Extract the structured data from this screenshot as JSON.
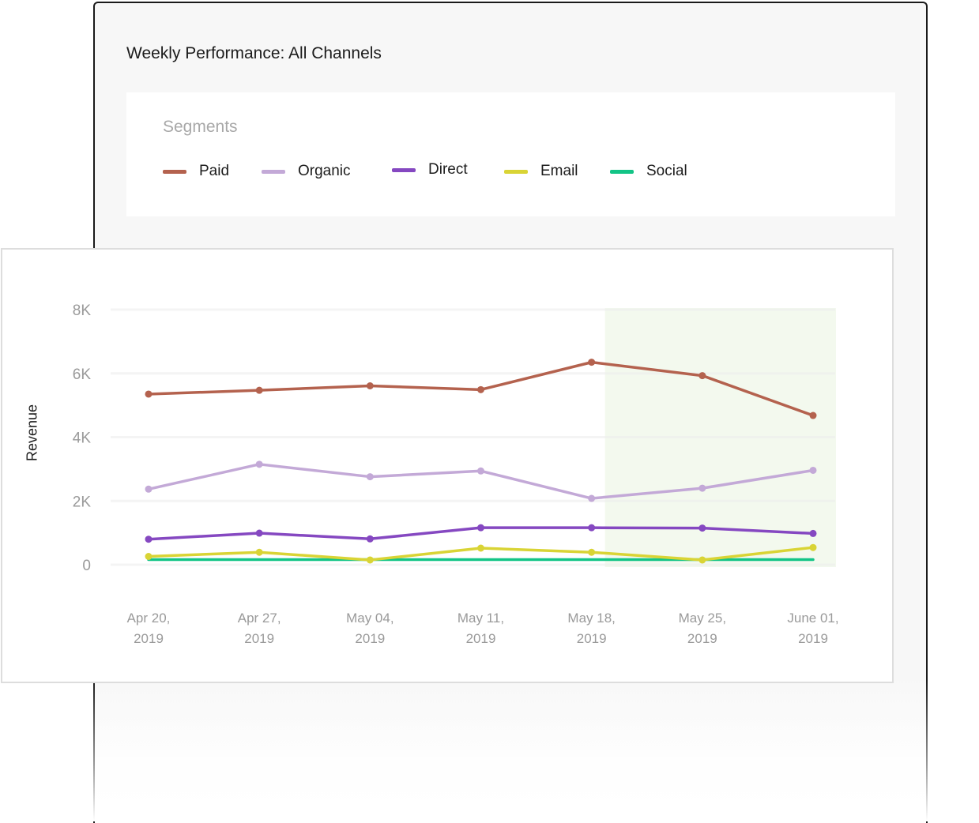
{
  "header": {
    "title": "Weekly Performance: All Channels"
  },
  "legend": {
    "heading": "Segments",
    "items": [
      {
        "label": "Paid",
        "color": "#b4624e"
      },
      {
        "label": "Organic",
        "color": "#c3a9d7"
      },
      {
        "label": "Direct",
        "color": "#8548c1"
      },
      {
        "label": "Email",
        "color": "#d9d435"
      },
      {
        "label": "Social",
        "color": "#13c486"
      }
    ]
  },
  "chart_data": {
    "type": "line",
    "title": "",
    "xlabel": "",
    "ylabel": "Revenue",
    "ylim": [
      0,
      8000
    ],
    "yticks": [
      0,
      2000,
      4000,
      6000,
      8000
    ],
    "ytick_labels": [
      "0",
      "2K",
      "4K",
      "6K",
      "8K"
    ],
    "x": [
      [
        "Apr 20,",
        "2019"
      ],
      [
        "Apr 27,",
        "2019"
      ],
      [
        "May 04,",
        "2019"
      ],
      [
        "May 11,",
        "2019"
      ],
      [
        "May 18,",
        "2019"
      ],
      [
        "May 25,",
        "2019"
      ],
      [
        "June 01,",
        "2019"
      ]
    ],
    "highlight_range": [
      "May 18, 2019",
      "June 01, 2019"
    ],
    "highlight_color": "#f3f9ee",
    "grid": true,
    "series": [
      {
        "name": "Paid",
        "color": "#b4624e",
        "markers": true,
        "values": [
          5350,
          5470,
          5610,
          5490,
          6350,
          5930,
          4680
        ]
      },
      {
        "name": "Organic",
        "color": "#c3a9d7",
        "markers": true,
        "values": [
          2370,
          3150,
          2760,
          2940,
          2080,
          2400,
          2960
        ]
      },
      {
        "name": "Direct",
        "color": "#8548c1",
        "markers": true,
        "values": [
          800,
          990,
          810,
          1160,
          1160,
          1150,
          980
        ]
      },
      {
        "name": "Email",
        "color": "#d9d435",
        "markers": true,
        "values": [
          260,
          390,
          150,
          520,
          390,
          150,
          540
        ]
      },
      {
        "name": "Social",
        "color": "#13c486",
        "markers": false,
        "values": [
          160,
          160,
          160,
          160,
          160,
          160,
          160
        ]
      }
    ]
  }
}
